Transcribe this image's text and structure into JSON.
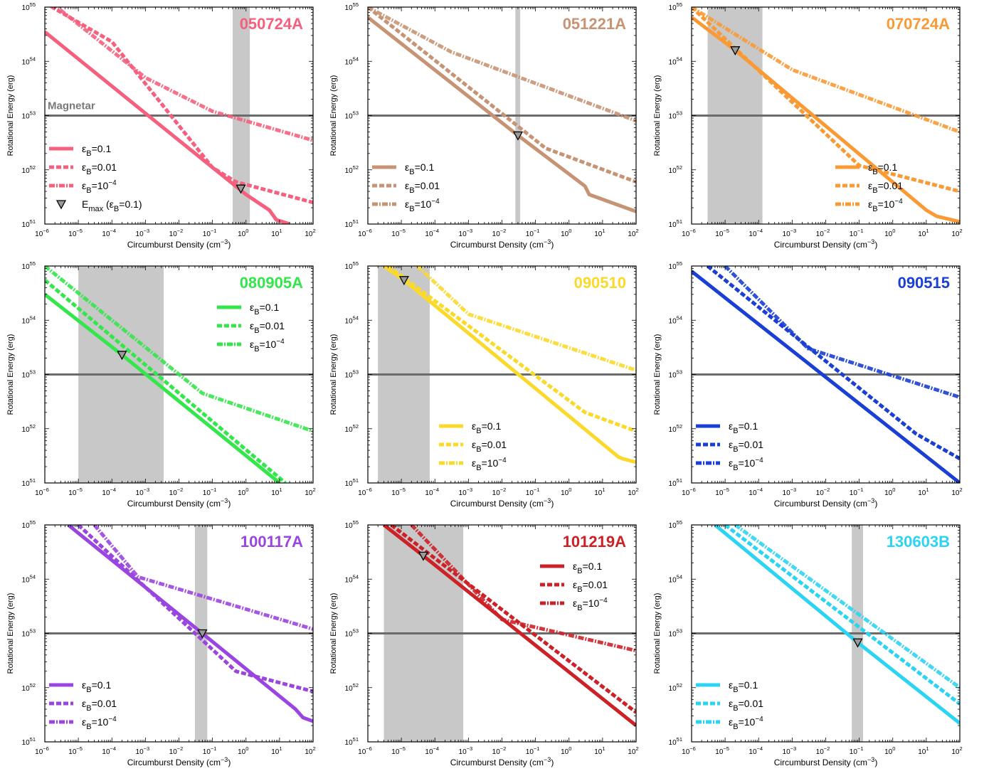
{
  "figure": {
    "x_axis_label": "Circumburst Density (cm",
    "x_axis_label_sup": "−3",
    "x_axis_label_close": ")",
    "y_axis_label": "Rotational Energy (erg)",
    "magnetar_label": "Magnetar"
  },
  "legend_labels": {
    "eps_symbol": "ε",
    "sub": "B",
    "e1": "=0.1",
    "e2": "=0.01",
    "e3_base": "=10",
    "e3_exp": "−4",
    "emax_prefix": "E",
    "emax_sub": "max",
    "emax_suffix_a": " (ε",
    "emax_suffix_b": "=0.1)"
  },
  "chart_data": [
    {
      "type": "line",
      "title": "050724A",
      "color": "#f4607d",
      "x_scale": "log",
      "y_scale": "log",
      "xlim": [
        1e-06,
        100
      ],
      "ylim": [
        1e+51,
        1e+55
      ],
      "shaded_range": [
        0.4,
        1.3
      ],
      "magnetar_energy": 1e+53,
      "show_magnetar_label": true,
      "legend_position": "lower-left",
      "show_emax_in_legend": true,
      "series": [
        {
          "name": "εB=0.1",
          "style": "solid",
          "x": [
            1e-06,
            0.001,
            1,
            5,
            8,
            20
          ],
          "y": [
            3.5e+54,
            1.1e+53,
            3.5e+51,
            1.8e+51,
            1.2e+51,
            1e+51
          ]
        },
        {
          "name": "εB=0.01",
          "style": "dashed",
          "x": [
            1e-06,
            0.0001,
            0.1,
            0.5,
            100
          ],
          "y": [
            1.2e+55,
            2.3e+54,
            1.1e+52,
            6e+51,
            2.5e+51
          ]
        },
        {
          "name": "εB=10^-4",
          "style": "dashdot",
          "x": [
            1e-06,
            0.001,
            0.1,
            100
          ],
          "y": [
            1.5e+55,
            5e+53,
            1.2e+53,
            3.5e+52
          ]
        }
      ],
      "emax": {
        "x": 0.7,
        "y": 4.5e+51
      }
    },
    {
      "type": "line",
      "title": "051221A",
      "color": "#c69474",
      "x_scale": "log",
      "y_scale": "log",
      "xlim": [
        1e-06,
        100
      ],
      "ylim": [
        1e+51,
        1e+55
      ],
      "shaded_range": [
        0.025,
        0.035
      ],
      "magnetar_energy": 1e+53,
      "show_magnetar_label": false,
      "legend_position": "lower-left",
      "show_emax_in_legend": false,
      "series": [
        {
          "name": "εB=0.1",
          "style": "solid",
          "x": [
            1e-06,
            0.03,
            3,
            4,
            100
          ],
          "y": [
            6.5e+54,
            4.3e+52,
            5e+51,
            3.5e+51,
            1.7e+51
          ]
        },
        {
          "name": "εB=0.01",
          "style": "dashed",
          "x": [
            1e-06,
            0.2,
            100
          ],
          "y": [
            1e+55,
            2.5e+52,
            6e+51
          ]
        },
        {
          "name": "εB=10^-4",
          "style": "dashdot",
          "x": [
            1e-06,
            0.0003,
            100
          ],
          "y": [
            1e+55,
            1.5e+54,
            8e+52
          ]
        }
      ],
      "emax": {
        "x": 0.03,
        "y": 4.3e+52
      }
    },
    {
      "type": "line",
      "title": "070724A",
      "color": "#f99a35",
      "x_scale": "log",
      "y_scale": "log",
      "xlim": [
        1e-06,
        100
      ],
      "ylim": [
        1e+51,
        1e+55
      ],
      "shaded_range": [
        3e-06,
        0.00013
      ],
      "magnetar_energy": 1e+53,
      "show_magnetar_label": false,
      "legend_position": "lower-right",
      "show_emax_in_legend": false,
      "series": [
        {
          "name": "εB=0.1",
          "style": "solid",
          "x": [
            1e-06,
            2e-05,
            10,
            20,
            100
          ],
          "y": [
            6.5e+54,
            1.6e+54,
            1.8e+51,
            1.4e+51,
            1.1e+51
          ]
        },
        {
          "name": "εB=0.01",
          "style": "dashed",
          "x": [
            1e-06,
            0.1,
            100
          ],
          "y": [
            1e+55,
            1.2e+52,
            4e+51
          ]
        },
        {
          "name": "εB=10^-4",
          "style": "dashdot",
          "x": [
            1e-06,
            0.001,
            100
          ],
          "y": [
            1e+55,
            7e+53,
            5e+52
          ]
        }
      ],
      "emax": {
        "x": 2e-05,
        "y": 1.6e+54
      }
    },
    {
      "type": "line",
      "title": "080905A",
      "color": "#33e64a",
      "x_scale": "log",
      "y_scale": "log",
      "xlim": [
        1e-06,
        100
      ],
      "ylim": [
        1e+51,
        1e+55
      ],
      "shaded_range": [
        1e-05,
        0.0035
      ],
      "magnetar_energy": 1e+53,
      "show_magnetar_label": false,
      "legend_position": "upper-right",
      "show_emax_in_legend": false,
      "series": [
        {
          "name": "εB=0.1",
          "style": "solid",
          "x": [
            1e-06,
            0.0002,
            10
          ],
          "y": [
            3e+54,
            2.3e+53,
            1e+51
          ]
        },
        {
          "name": "εB=0.01",
          "style": "dashed",
          "x": [
            1e-06,
            15
          ],
          "y": [
            5.5e+54,
            1e+51
          ]
        },
        {
          "name": "εB=10^-4",
          "style": "dashdot",
          "x": [
            1e-06,
            0.05,
            100
          ],
          "y": [
            1e+55,
            4.5e+52,
            9e+51
          ]
        }
      ],
      "emax": {
        "x": 0.0002,
        "y": 2.3e+53
      }
    },
    {
      "type": "line",
      "title": "090510",
      "color": "#fbd92a",
      "x_scale": "log",
      "y_scale": "log",
      "xlim": [
        1e-06,
        100
      ],
      "ylim": [
        1e+51,
        1e+55
      ],
      "shaded_range": [
        2e-06,
        7e-05
      ],
      "magnetar_energy": 1e+53,
      "show_magnetar_label": false,
      "legend_position": "lower-center",
      "show_emax_in_legend": false,
      "series": [
        {
          "name": "εB=0.1",
          "style": "solid",
          "x": [
            3e-06,
            1.2e-05,
            30,
            40,
            100
          ],
          "y": [
            1e+55,
            5.5e+54,
            3e+51,
            2.8e+51,
            2.4e+51
          ]
        },
        {
          "name": "εB=0.01",
          "style": "dashed",
          "x": [
            4e-06,
            3,
            100
          ],
          "y": [
            1e+55,
            2e+52,
            9e+51
          ]
        },
        {
          "name": "εB=10^-4",
          "style": "dashdot",
          "x": [
            3e-05,
            0.001,
            100
          ],
          "y": [
            1e+55,
            1.3e+54,
            1.2e+53
          ]
        }
      ],
      "emax": {
        "x": 1.2e-05,
        "y": 5.5e+54
      }
    },
    {
      "type": "line",
      "title": "090515",
      "color": "#1a3fd4",
      "x_scale": "log",
      "y_scale": "log",
      "xlim": [
        1e-06,
        100
      ],
      "ylim": [
        1e+51,
        1e+55
      ],
      "shaded_range": null,
      "magnetar_energy": 1e+53,
      "show_magnetar_label": false,
      "legend_position": "lower-left",
      "show_emax_in_legend": false,
      "series": [
        {
          "name": "εB=0.1",
          "style": "solid",
          "x": [
            1e-06,
            100
          ],
          "y": [
            8e+54,
            1e+51
          ]
        },
        {
          "name": "εB=0.01",
          "style": "dashed",
          "x": [
            3e-06,
            5,
            100
          ],
          "y": [
            1e+55,
            8e+51,
            2.8e+51
          ]
        },
        {
          "name": "εB=10^-4",
          "style": "dashdot",
          "x": [
            1e-05,
            0.003,
            100
          ],
          "y": [
            1e+55,
            3e+53,
            3.8e+52
          ]
        }
      ],
      "emax": null
    },
    {
      "type": "line",
      "title": "100117A",
      "color": "#9b45e0",
      "x_scale": "log",
      "y_scale": "log",
      "xlim": [
        1e-06,
        100
      ],
      "ylim": [
        1e+51,
        1e+55
      ],
      "shaded_range": [
        0.03,
        0.07
      ],
      "magnetar_energy": 1e+53,
      "show_magnetar_label": false,
      "legend_position": "lower-left",
      "show_emax_in_legend": false,
      "series": [
        {
          "name": "εB=0.1",
          "style": "solid",
          "x": [
            5e-06,
            0.05,
            30,
            50,
            100
          ],
          "y": [
            1e+55,
            1e+53,
            4e+51,
            2.8e+51,
            2.4e+51
          ]
        },
        {
          "name": "εB=0.01",
          "style": "dashed",
          "x": [
            1e-05,
            0.5,
            100
          ],
          "y": [
            1e+55,
            2e+52,
            8.5e+51
          ]
        },
        {
          "name": "εB=10^-4",
          "style": "dashdot",
          "x": [
            3e-05,
            0.0006,
            100
          ],
          "y": [
            1e+55,
            1.1e+54,
            1.2e+53
          ]
        }
      ],
      "emax": {
        "x": 0.05,
        "y": 1e+53
      }
    },
    {
      "type": "line",
      "title": "101219A",
      "color": "#cc2127",
      "x_scale": "log",
      "y_scale": "log",
      "xlim": [
        1e-06,
        100
      ],
      "ylim": [
        1e+51,
        1e+55
      ],
      "shaded_range": [
        3e-06,
        0.0007
      ],
      "magnetar_energy": 1e+53,
      "show_magnetar_label": false,
      "legend_position": "upper-right",
      "show_emax_in_legend": false,
      "series": [
        {
          "name": "εB=0.1",
          "style": "solid",
          "x": [
            3e-06,
            4.5e-05,
            100
          ],
          "y": [
            1e+55,
            2.7e+54,
            2e+51
          ]
        },
        {
          "name": "εB=0.01",
          "style": "dashed",
          "x": [
            5e-06,
            100
          ],
          "y": [
            1e+55,
            3.5e+51
          ]
        },
        {
          "name": "εB=10^-4",
          "style": "dashdot",
          "x": [
            2e-05,
            0.01,
            100
          ],
          "y": [
            1e+55,
            1.8e+53,
            4.8e+52
          ]
        }
      ],
      "emax": {
        "x": 4.5e-05,
        "y": 2.7e+54
      }
    },
    {
      "type": "line",
      "title": "130603B",
      "color": "#2bd4f2",
      "x_scale": "log",
      "y_scale": "log",
      "xlim": [
        1e-06,
        100
      ],
      "ylim": [
        1e+51,
        1e+55
      ],
      "shaded_range": [
        0.06,
        0.13
      ],
      "magnetar_energy": 1e+53,
      "show_magnetar_label": false,
      "legend_position": "lower-left",
      "show_emax_in_legend": false,
      "series": [
        {
          "name": "εB=0.1",
          "style": "solid",
          "x": [
            5e-06,
            0.09,
            100
          ],
          "y": [
            1e+55,
            6.8e+52,
            2.2e+51
          ]
        },
        {
          "name": "εB=0.01",
          "style": "dashed",
          "x": [
            1e-05,
            100
          ],
          "y": [
            1e+55,
            5e+51
          ]
        },
        {
          "name": "εB=10^-4",
          "style": "dashdot",
          "x": [
            2e-05,
            100
          ],
          "y": [
            1e+55,
            1e+52
          ]
        }
      ],
      "emax": {
        "x": 0.09,
        "y": 6.8e+52
      }
    }
  ]
}
